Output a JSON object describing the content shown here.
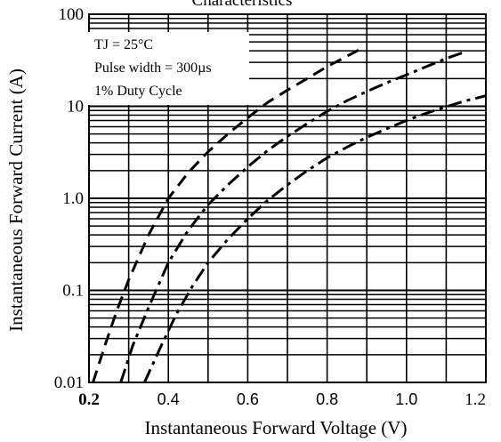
{
  "chart_data": {
    "type": "line",
    "title": "Characteristics",
    "xlabel": "Instantaneous Forward Voltage (V)",
    "ylabel": "Instantaneous Forward Current (A)",
    "xlim": [
      0.2,
      1.2
    ],
    "ylim": [
      0.01,
      100
    ],
    "yscale": "log",
    "x_ticks": [
      {
        "value": 0.2,
        "label": "0.2"
      },
      {
        "value": 0.4,
        "label": "0.4"
      },
      {
        "value": 0.6,
        "label": "0.6"
      },
      {
        "value": 0.8,
        "label": "0.8"
      },
      {
        "value": 1.0,
        "label": "1.0"
      },
      {
        "value": 1.2,
        "label": "1.2"
      }
    ],
    "y_ticks": [
      {
        "value": 0.01,
        "label": "0.01"
      },
      {
        "value": 0.1,
        "label": "0.1"
      },
      {
        "value": 1,
        "label": "1.0"
      },
      {
        "value": 10,
        "label": "10"
      },
      {
        "value": 100,
        "label": "100"
      }
    ],
    "grid": true,
    "conditions": [
      "TJ = 25°C",
      "Pulse width = 300µs",
      "1% Duty Cycle"
    ],
    "series": [
      {
        "style": "dashed",
        "x": [
          0.21,
          0.24,
          0.27,
          0.3,
          0.35,
          0.4,
          0.45,
          0.5,
          0.55,
          0.6,
          0.65,
          0.7,
          0.75,
          0.8,
          0.85,
          0.88
        ],
        "y": [
          0.01,
          0.025,
          0.06,
          0.13,
          0.4,
          1.0,
          1.9,
          3.2,
          5.0,
          7.5,
          11,
          15,
          20,
          27,
          35,
          41
        ]
      },
      {
        "style": "dash-dot",
        "x": [
          0.28,
          0.31,
          0.35,
          0.4,
          0.45,
          0.5,
          0.55,
          0.6,
          0.65,
          0.7,
          0.75,
          0.8,
          0.85,
          0.9,
          0.95,
          1.0,
          1.05,
          1.1,
          1.14
        ],
        "y": [
          0.01,
          0.025,
          0.065,
          0.2,
          0.45,
          0.85,
          1.4,
          2.2,
          3.3,
          4.7,
          6.5,
          8.8,
          11.5,
          14.5,
          18,
          22,
          27,
          33,
          38
        ]
      },
      {
        "style": "dash-dot",
        "x": [
          0.34,
          0.38,
          0.42,
          0.46,
          0.5,
          0.55,
          0.6,
          0.65,
          0.7,
          0.75,
          0.8,
          0.85,
          0.9,
          0.95,
          1.0,
          1.05,
          1.1,
          1.15,
          1.2
        ],
        "y": [
          0.01,
          0.024,
          0.055,
          0.11,
          0.2,
          0.36,
          0.6,
          0.95,
          1.4,
          2.0,
          2.75,
          3.6,
          4.6,
          5.7,
          7.0,
          8.4,
          9.9,
          11.5,
          13
        ]
      }
    ]
  }
}
